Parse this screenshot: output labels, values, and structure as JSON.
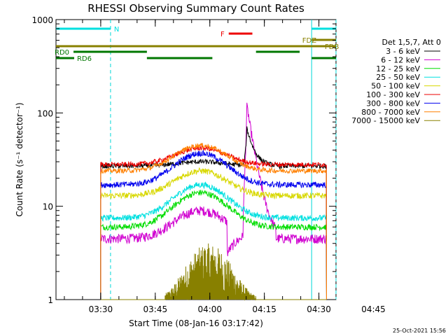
{
  "chart_data": {
    "type": "line",
    "title": "RHESSI Observing Summary Count Rates",
    "xlabel": "Start Time (08-Jan-16 03:17:42)",
    "ylabel": "Count Rate (s⁻¹ detector⁻¹)",
    "yscale": "log",
    "ylim": [
      1,
      1000
    ],
    "xlim_minutes": [
      0,
      77
    ],
    "y_ticks": [
      {
        "value": 1,
        "label": "1"
      },
      {
        "value": 10,
        "label": "10"
      },
      {
        "value": 100,
        "label": "100"
      },
      {
        "value": 1000,
        "label": "1000"
      }
    ],
    "x_ticks": [
      {
        "minute": 12.3,
        "label": "03:30"
      },
      {
        "minute": 27.3,
        "label": "03:45"
      },
      {
        "minute": 42.3,
        "label": "04:00"
      },
      {
        "minute": 57.3,
        "label": "04:15"
      },
      {
        "minute": 72.3,
        "label": "04:30"
      },
      {
        "minute": 87.3,
        "label": "04:45"
      }
    ],
    "legend_header": "Det 1,5,7, Att 0",
    "series": [
      {
        "name": "3 - 6 keV",
        "color": "#000000",
        "base": 27,
        "peak": 30,
        "spike": 68,
        "noise": 0.04
      },
      {
        "name": "6 - 12 keV",
        "color": "#d000d0",
        "base": 4.5,
        "peak": 9,
        "spike": 115,
        "noise": 0.08
      },
      {
        "name": "12 - 25 keV",
        "color": "#00dd00",
        "base": 6,
        "peak": 14,
        "spike": 0,
        "noise": 0.05
      },
      {
        "name": "25 - 50 keV",
        "color": "#00e0e0",
        "base": 7.5,
        "peak": 17,
        "spike": 0,
        "noise": 0.05
      },
      {
        "name": "50 - 100 keV",
        "color": "#d8d800",
        "base": 13,
        "peak": 24,
        "spike": 0,
        "noise": 0.05
      },
      {
        "name": "100 - 300 keV",
        "color": "#ee0000",
        "base": 28,
        "peak": 42,
        "spike": 0,
        "noise": 0.04
      },
      {
        "name": "300 - 800 keV",
        "color": "#0000ee",
        "base": 17,
        "peak": 37,
        "spike": 0,
        "noise": 0.05
      },
      {
        "name": "800 - 7000 keV",
        "color": "#ff8000",
        "base": 24,
        "peak": 45,
        "spike": 0,
        "noise": 0.04
      },
      {
        "name": "7000 - 15000 keV",
        "color": "#888000",
        "base": 0,
        "peak": 3,
        "spike": 0,
        "noise": 0.2
      }
    ],
    "data_start_minute": 12.3,
    "data_end_minute": 74.4,
    "flare_peak_minute": 39.8,
    "spike_minute": 52.5,
    "flags": [
      {
        "name": "N",
        "label": "N",
        "color": "#00e0e0",
        "segments": [
          [
            0,
            15
          ],
          [
            70.3,
            77
          ]
        ]
      },
      {
        "name": "F",
        "label": "F",
        "color": "#ee0000",
        "segments": [
          [
            47.5,
            54
          ]
        ]
      },
      {
        "name": "FDZ",
        "label": "FDZ",
        "color": "#888000",
        "segments": [
          [
            70.3,
            77
          ]
        ]
      },
      {
        "name": "FDB",
        "label": "FDB",
        "color": "#888000",
        "segments": [
          [
            0,
            77
          ]
        ]
      },
      {
        "name": "RD0",
        "label": "RD0",
        "color": "#007700",
        "segments": [
          [
            0,
            25
          ],
          [
            55,
            67
          ]
        ]
      },
      {
        "name": "RD6",
        "label": "RD6",
        "color": "#007700",
        "segments": [
          [
            0,
            5
          ],
          [
            25,
            43
          ],
          [
            70.3,
            77
          ]
        ]
      }
    ],
    "night_lines_minutes": [
      15,
      70.3,
      77
    ],
    "night_solid_minutes": [
      70.3
    ],
    "timestamp": "25-Oct-2021 15:56"
  }
}
